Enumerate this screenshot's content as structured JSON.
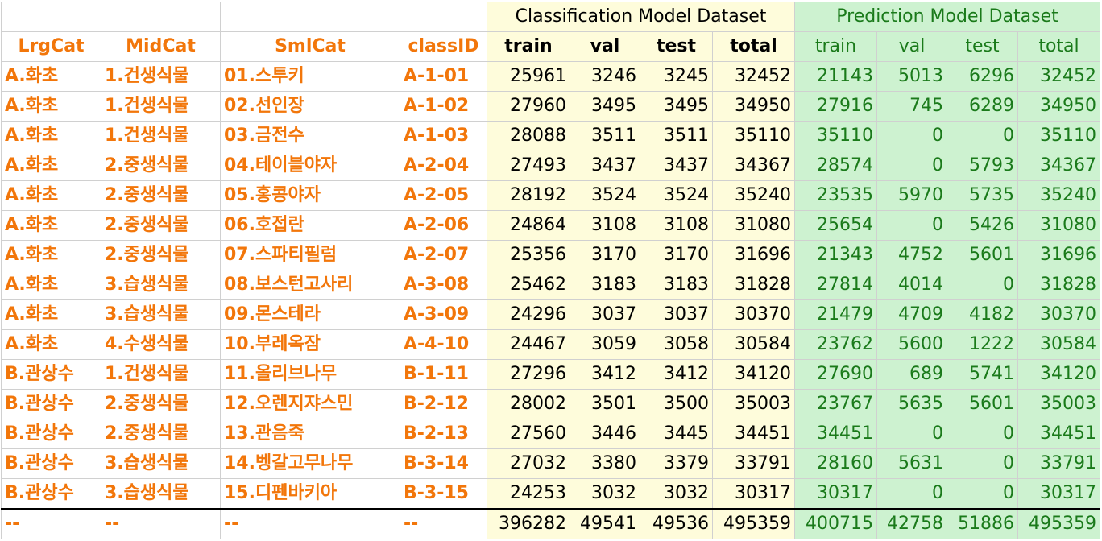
{
  "groups": {
    "classification": "Classification Model Dataset",
    "prediction": "Prediction Model Dataset"
  },
  "headers": {
    "lrg": "LrgCat",
    "mid": "MidCat",
    "sml": "SmlCat",
    "classid": "classID",
    "cls": [
      "train",
      "val",
      "test",
      "total"
    ],
    "pred": [
      "train",
      "val",
      "test",
      "total"
    ]
  },
  "rows": [
    {
      "lrg": "A.화초",
      "mid": "1.건생식물",
      "sml": "01.스투키",
      "classid": "A-1-01",
      "cls": [
        "25961",
        "3246",
        "3245",
        "32452"
      ],
      "pred": [
        "21143",
        "5013",
        "6296",
        "32452"
      ]
    },
    {
      "lrg": "A.화초",
      "mid": "1.건생식물",
      "sml": "02.선인장",
      "classid": "A-1-02",
      "cls": [
        "27960",
        "3495",
        "3495",
        "34950"
      ],
      "pred": [
        "27916",
        "745",
        "6289",
        "34950"
      ]
    },
    {
      "lrg": "A.화초",
      "mid": "1.건생식물",
      "sml": "03.금전수",
      "classid": "A-1-03",
      "cls": [
        "28088",
        "3511",
        "3511",
        "35110"
      ],
      "pred": [
        "35110",
        "0",
        "0",
        "35110"
      ]
    },
    {
      "lrg": "A.화초",
      "mid": "2.중생식물",
      "sml": "04.테이블야자",
      "classid": "A-2-04",
      "cls": [
        "27493",
        "3437",
        "3437",
        "34367"
      ],
      "pred": [
        "28574",
        "0",
        "5793",
        "34367"
      ]
    },
    {
      "lrg": "A.화초",
      "mid": "2.중생식물",
      "sml": "05.홍콩야자",
      "classid": "A-2-05",
      "cls": [
        "28192",
        "3524",
        "3524",
        "35240"
      ],
      "pred": [
        "23535",
        "5970",
        "5735",
        "35240"
      ]
    },
    {
      "lrg": "A.화초",
      "mid": "2.중생식물",
      "sml": "06.호접란",
      "classid": "A-2-06",
      "cls": [
        "24864",
        "3108",
        "3108",
        "31080"
      ],
      "pred": [
        "25654",
        "0",
        "5426",
        "31080"
      ]
    },
    {
      "lrg": "A.화초",
      "mid": "2.중생식물",
      "sml": "07.스파티필럼",
      "classid": "A-2-07",
      "cls": [
        "25356",
        "3170",
        "3170",
        "31696"
      ],
      "pred": [
        "21343",
        "4752",
        "5601",
        "31696"
      ]
    },
    {
      "lrg": "A.화초",
      "mid": "3.습생식물",
      "sml": "08.보스턴고사리",
      "classid": "A-3-08",
      "cls": [
        "25462",
        "3183",
        "3183",
        "31828"
      ],
      "pred": [
        "27814",
        "4014",
        "0",
        "31828"
      ]
    },
    {
      "lrg": "A.화초",
      "mid": "3.습생식물",
      "sml": "09.몬스테라",
      "classid": "A-3-09",
      "cls": [
        "24296",
        "3037",
        "3037",
        "30370"
      ],
      "pred": [
        "21479",
        "4709",
        "4182",
        "30370"
      ]
    },
    {
      "lrg": "A.화초",
      "mid": "4.수생식물",
      "sml": "10.부레옥잠",
      "classid": "A-4-10",
      "cls": [
        "24467",
        "3059",
        "3058",
        "30584"
      ],
      "pred": [
        "23762",
        "5600",
        "1222",
        "30584"
      ]
    },
    {
      "lrg": "B.관상수",
      "mid": "1.건생식물",
      "sml": "11.올리브나무",
      "classid": "B-1-11",
      "cls": [
        "27296",
        "3412",
        "3412",
        "34120"
      ],
      "pred": [
        "27690",
        "689",
        "5741",
        "34120"
      ]
    },
    {
      "lrg": "B.관상수",
      "mid": "2.중생식물",
      "sml": "12.오렌지쟈스민",
      "classid": "B-2-12",
      "cls": [
        "28002",
        "3501",
        "3500",
        "35003"
      ],
      "pred": [
        "23767",
        "5635",
        "5601",
        "35003"
      ]
    },
    {
      "lrg": "B.관상수",
      "mid": "2.중생식물",
      "sml": "13.관음죽",
      "classid": "B-2-13",
      "cls": [
        "27560",
        "3446",
        "3445",
        "34451"
      ],
      "pred": [
        "34451",
        "0",
        "0",
        "34451"
      ]
    },
    {
      "lrg": "B.관상수",
      "mid": "3.습생식물",
      "sml": "14.벵갈고무나무",
      "classid": "B-3-14",
      "cls": [
        "27032",
        "3380",
        "3379",
        "33791"
      ],
      "pred": [
        "28160",
        "5631",
        "0",
        "33791"
      ]
    },
    {
      "lrg": "B.관상수",
      "mid": "3.습생식물",
      "sml": "15.디펜바키아",
      "classid": "B-3-15",
      "cls": [
        "24253",
        "3032",
        "3032",
        "30317"
      ],
      "pred": [
        "30317",
        "0",
        "0",
        "30317"
      ]
    }
  ],
  "totals": {
    "lrg": "--",
    "mid": "--",
    "sml": "--",
    "classid": "--",
    "cls": [
      "396282",
      "49541",
      "49536",
      "495359"
    ],
    "pred": [
      "400715",
      "42758",
      "51886",
      "495359"
    ]
  }
}
